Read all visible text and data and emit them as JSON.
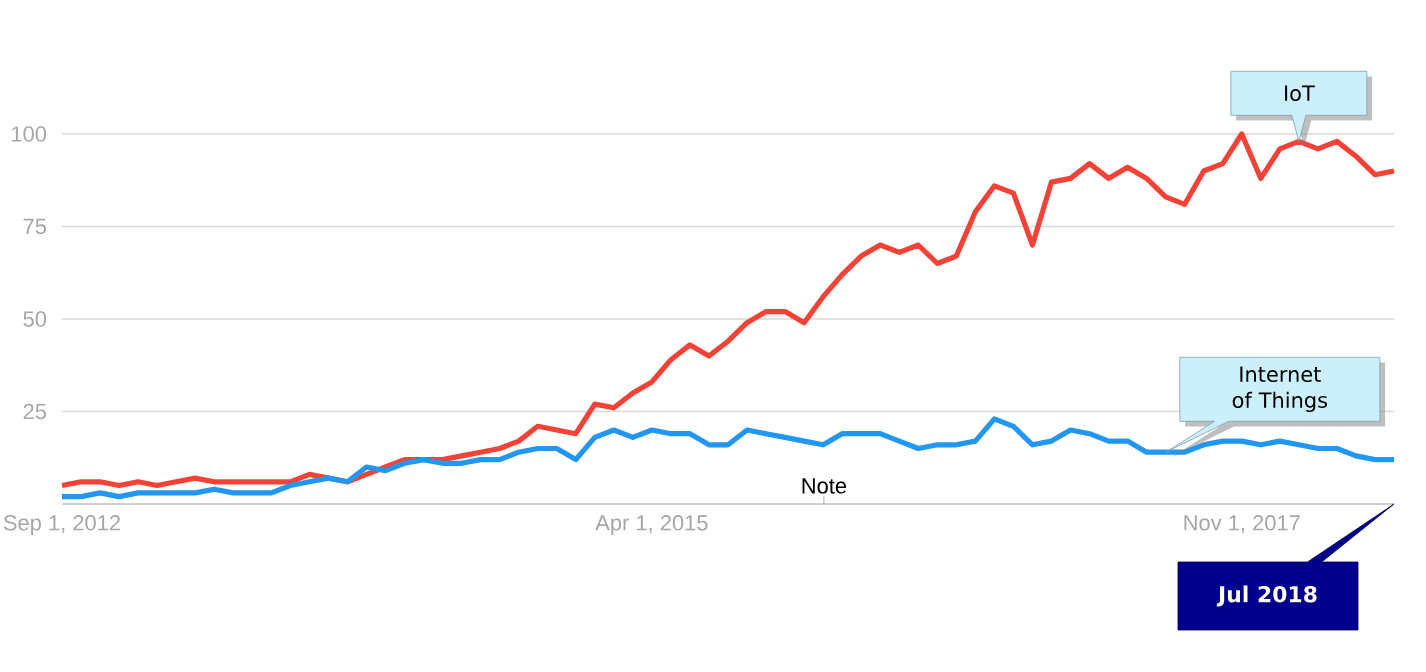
{
  "chart_data": {
    "type": "line",
    "x": [
      "2012-09",
      "2012-10",
      "2012-11",
      "2012-12",
      "2013-01",
      "2013-02",
      "2013-03",
      "2013-04",
      "2013-05",
      "2013-06",
      "2013-07",
      "2013-08",
      "2013-09",
      "2013-10",
      "2013-11",
      "2013-12",
      "2014-01",
      "2014-02",
      "2014-03",
      "2014-04",
      "2014-05",
      "2014-06",
      "2014-07",
      "2014-08",
      "2014-09",
      "2014-10",
      "2014-11",
      "2014-12",
      "2015-01",
      "2015-02",
      "2015-03",
      "2015-04",
      "2015-05",
      "2015-06",
      "2015-07",
      "2015-08",
      "2015-09",
      "2015-10",
      "2015-11",
      "2015-12",
      "2016-01",
      "2016-02",
      "2016-03",
      "2016-04",
      "2016-05",
      "2016-06",
      "2016-07",
      "2016-08",
      "2016-09",
      "2016-10",
      "2016-11",
      "2016-12",
      "2017-01",
      "2017-02",
      "2017-03",
      "2017-04",
      "2017-05",
      "2017-06",
      "2017-07",
      "2017-08",
      "2017-09",
      "2017-10",
      "2017-11",
      "2017-12",
      "2018-01",
      "2018-02",
      "2018-03",
      "2018-04",
      "2018-05",
      "2018-06",
      "2018-07"
    ],
    "series": [
      {
        "name": "IoT",
        "color": "#f44336",
        "values": [
          5,
          6,
          6,
          5,
          6,
          5,
          6,
          7,
          6,
          6,
          6,
          6,
          6,
          8,
          7,
          6,
          8,
          10,
          12,
          12,
          12,
          13,
          14,
          15,
          17,
          21,
          20,
          19,
          27,
          26,
          30,
          33,
          39,
          43,
          40,
          44,
          49,
          52,
          52,
          49,
          56,
          62,
          67,
          70,
          68,
          70,
          65,
          67,
          79,
          86,
          84,
          70,
          87,
          88,
          92,
          88,
          91,
          88,
          83,
          81,
          90,
          92,
          100,
          88,
          96,
          98,
          96,
          98,
          94,
          89,
          90
        ]
      },
      {
        "name": "Internet of Things",
        "color": "#2196f3",
        "values": [
          2,
          2,
          3,
          2,
          3,
          3,
          3,
          3,
          4,
          3,
          3,
          3,
          5,
          6,
          7,
          6,
          10,
          9,
          11,
          12,
          11,
          11,
          12,
          12,
          14,
          15,
          15,
          12,
          18,
          20,
          18,
          20,
          19,
          19,
          16,
          16,
          20,
          19,
          18,
          17,
          16,
          19,
          19,
          19,
          17,
          15,
          16,
          16,
          17,
          23,
          21,
          16,
          17,
          20,
          19,
          17,
          17,
          14,
          14,
          14,
          16,
          17,
          17,
          16,
          17,
          16,
          15,
          15,
          13,
          12,
          12
        ]
      }
    ],
    "xlim": [
      "2012-09",
      "2018-07"
    ],
    "xticks": [
      {
        "value": "2012-09-01",
        "label": "Sep 1, 2012"
      },
      {
        "value": "2015-04-01",
        "label": "Apr 1, 2015"
      },
      {
        "value": "2017-11-01",
        "label": "Nov 1, 2017"
      }
    ],
    "ylim": [
      0,
      100
    ],
    "yticks": [
      25,
      50,
      75,
      100
    ],
    "grid": "y",
    "legend": false,
    "annotations": [
      "Note",
      "Jul 2018"
    ]
  }
}
